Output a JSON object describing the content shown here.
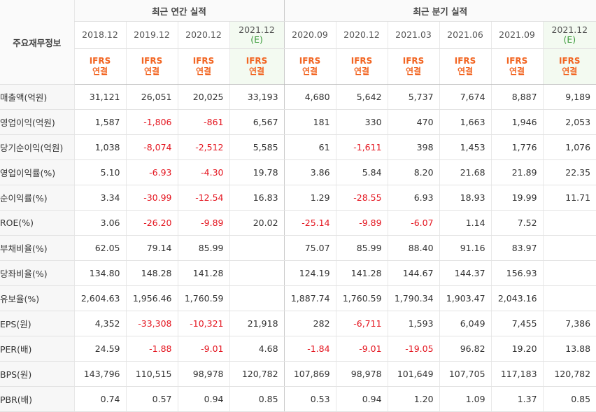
{
  "header": {
    "row_header": "주요재무정보",
    "annual_group": "최근 연간 실적",
    "quarter_group": "최근 분기 실적",
    "annual_periods": [
      {
        "label": "2018.12",
        "est": ""
      },
      {
        "label": "2019.12",
        "est": ""
      },
      {
        "label": "2020.12",
        "est": ""
      },
      {
        "label": "2021.12",
        "est": "(E)"
      }
    ],
    "quarter_periods": [
      {
        "label": "2020.09",
        "est": ""
      },
      {
        "label": "2020.12",
        "est": ""
      },
      {
        "label": "2021.03",
        "est": ""
      },
      {
        "label": "2021.06",
        "est": ""
      },
      {
        "label": "2021.09",
        "est": ""
      },
      {
        "label": "2021.12",
        "est": "(E)"
      }
    ],
    "ifrs_line1": "IFRS",
    "ifrs_line2": "연결"
  },
  "rows": [
    {
      "label": "매출액(억원)",
      "values": [
        "31,121",
        "26,051",
        "20,025",
        "33,193",
        "4,680",
        "5,642",
        "5,737",
        "7,674",
        "8,887",
        "9,189"
      ]
    },
    {
      "label": "영업이익(억원)",
      "values": [
        "1,587",
        "-1,806",
        "-861",
        "6,567",
        "181",
        "330",
        "470",
        "1,663",
        "1,946",
        "2,053"
      ]
    },
    {
      "label": "당기순이익(억원)",
      "values": [
        "1,038",
        "-8,074",
        "-2,512",
        "5,585",
        "61",
        "-1,611",
        "398",
        "1,453",
        "1,776",
        "1,076"
      ]
    },
    {
      "label": "영업이익률(%)",
      "values": [
        "5.10",
        "-6.93",
        "-4.30",
        "19.78",
        "3.86",
        "5.84",
        "8.20",
        "21.68",
        "21.89",
        "22.35"
      ]
    },
    {
      "label": "순이익률(%)",
      "values": [
        "3.34",
        "-30.99",
        "-12.54",
        "16.83",
        "1.29",
        "-28.55",
        "6.93",
        "18.93",
        "19.99",
        "11.71"
      ]
    },
    {
      "label": "ROE(%)",
      "values": [
        "3.06",
        "-26.20",
        "-9.89",
        "20.02",
        "-25.14",
        "-9.89",
        "-6.07",
        "1.14",
        "7.52",
        ""
      ]
    },
    {
      "label": "부채비율(%)",
      "values": [
        "62.05",
        "79.14",
        "85.99",
        "",
        "75.07",
        "85.99",
        "88.40",
        "91.16",
        "83.97",
        ""
      ]
    },
    {
      "label": "당좌비율(%)",
      "values": [
        "134.80",
        "148.28",
        "141.28",
        "",
        "124.19",
        "141.28",
        "144.67",
        "144.37",
        "156.93",
        ""
      ]
    },
    {
      "label": "유보율(%)",
      "values": [
        "2,604.63",
        "1,956.46",
        "1,760.59",
        "",
        "1,887.74",
        "1,760.59",
        "1,790.34",
        "1,903.47",
        "2,043.16",
        ""
      ]
    },
    {
      "label": "EPS(원)",
      "values": [
        "4,352",
        "-33,308",
        "-10,321",
        "21,918",
        "282",
        "-6,711",
        "1,593",
        "6,049",
        "7,455",
        "7,386"
      ]
    },
    {
      "label": "PER(배)",
      "values": [
        "24.59",
        "-1.88",
        "-9.01",
        "4.68",
        "-1.84",
        "-9.01",
        "-19.05",
        "96.82",
        "19.20",
        "13.88"
      ]
    },
    {
      "label": "BPS(원)",
      "values": [
        "143,796",
        "110,515",
        "98,978",
        "120,782",
        "107,869",
        "98,978",
        "101,649",
        "107,705",
        "117,183",
        "120,782"
      ]
    },
    {
      "label": "PBR(배)",
      "values": [
        "0.74",
        "0.57",
        "0.94",
        "0.85",
        "0.53",
        "0.94",
        "1.20",
        "1.09",
        "1.37",
        "0.85"
      ]
    }
  ],
  "colors": {
    "ifrs": "#f26522",
    "negative": "#e4151f",
    "estimate_tag": "#3a9a3a",
    "estimate_bg": "#f3faf1"
  }
}
